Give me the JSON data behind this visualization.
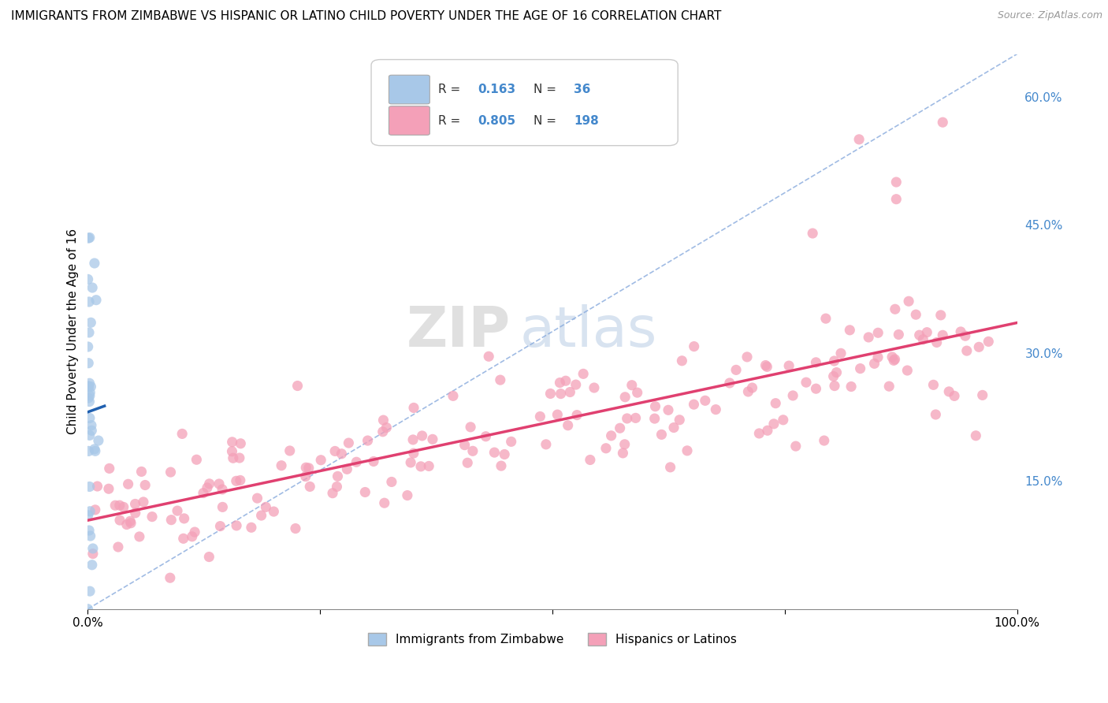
{
  "title": "IMMIGRANTS FROM ZIMBABWE VS HISPANIC OR LATINO CHILD POVERTY UNDER THE AGE OF 16 CORRELATION CHART",
  "source": "Source: ZipAtlas.com",
  "ylabel": "Child Poverty Under the Age of 16",
  "xlim": [
    0,
    1.0
  ],
  "ylim": [
    0,
    0.65
  ],
  "y_ticks_right": [
    0.15,
    0.3,
    0.45,
    0.6
  ],
  "y_tick_labels_right": [
    "15.0%",
    "30.0%",
    "45.0%",
    "60.0%"
  ],
  "blue_color": "#a8c8e8",
  "pink_color": "#f4a0b8",
  "blue_line_color": "#2060b0",
  "pink_line_color": "#e04070",
  "ref_line_color": "#88aadd",
  "watermark_zip": "ZIP",
  "watermark_atlas": "atlas",
  "blue_R": 0.163,
  "blue_N": 36,
  "pink_R": 0.805,
  "pink_N": 198,
  "background_color": "#ffffff",
  "grid_color": "#dddddd",
  "label_color": "#4488cc"
}
